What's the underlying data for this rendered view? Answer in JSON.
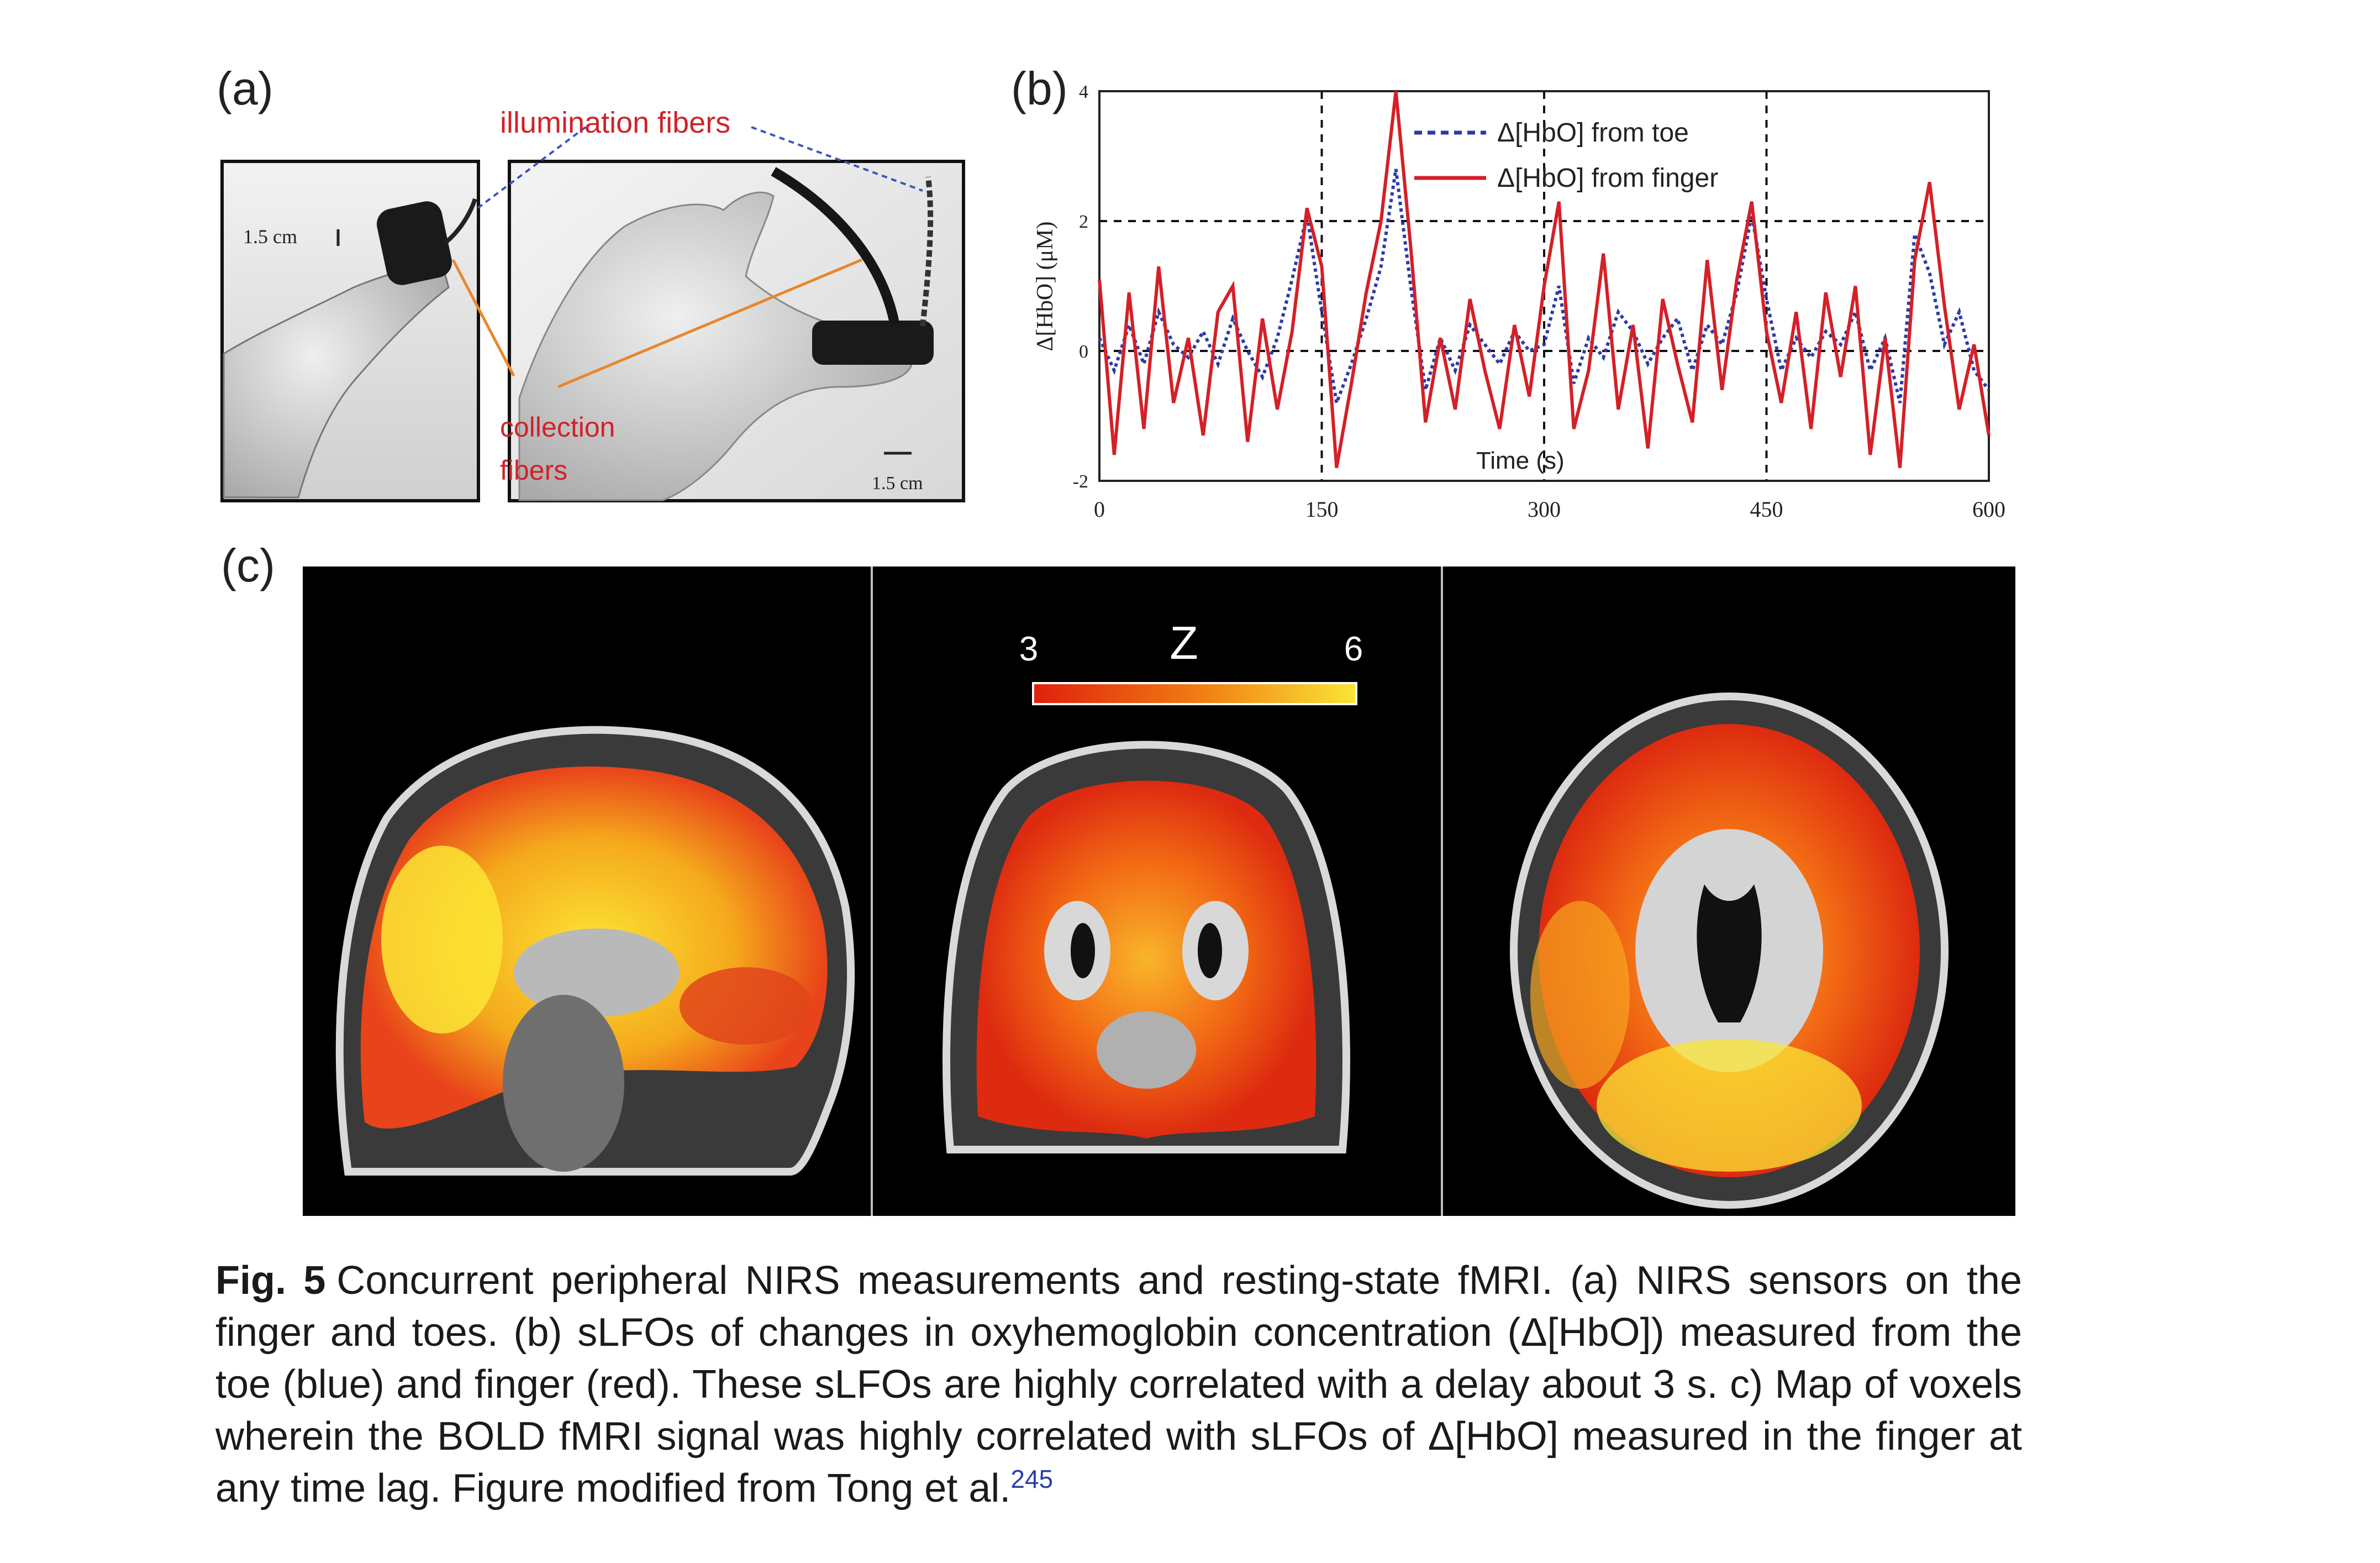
{
  "panel_a": {
    "label": "(a)",
    "illumination_label": "illumination fibers",
    "collection_label_1": "collection",
    "collection_label_2": "fibers",
    "scale_left": "1.5 cm",
    "scale_right": "1.5 cm"
  },
  "panel_b": {
    "label": "(b)",
    "chart_data": {
      "type": "line",
      "xlabel": "Time (s)",
      "ylabel": "Δ[HbO] (μM)",
      "xlim": [
        0,
        600
      ],
      "ylim": [
        -2,
        4
      ],
      "xticks": [
        0,
        150,
        300,
        450,
        600
      ],
      "yticks": [
        -2,
        0,
        2,
        4
      ],
      "x_tick_labels": [
        "0",
        "150",
        "300",
        "450",
        "600"
      ],
      "y_tick_labels": [
        "-2",
        "0",
        "2",
        "4"
      ],
      "grid_dashed_x": [
        150,
        300,
        450
      ],
      "grid_dashed_y": [
        0,
        2
      ],
      "legend_position": "top-right",
      "x": [
        0,
        10,
        20,
        30,
        40,
        50,
        60,
        70,
        80,
        90,
        100,
        110,
        120,
        130,
        140,
        150,
        160,
        170,
        180,
        190,
        200,
        210,
        220,
        230,
        240,
        250,
        260,
        270,
        280,
        290,
        300,
        310,
        320,
        330,
        340,
        350,
        360,
        370,
        380,
        390,
        400,
        410,
        420,
        430,
        440,
        450,
        460,
        470,
        480,
        490,
        500,
        510,
        520,
        530,
        540,
        550,
        560,
        570,
        580,
        590,
        600
      ],
      "series": [
        {
          "name": "Δ[HbO] from toe",
          "color": "#2b3aa8",
          "style": "dotted",
          "values": [
            0.2,
            -0.3,
            0.4,
            -0.2,
            0.6,
            0.1,
            -0.1,
            0.3,
            -0.2,
            0.5,
            0.0,
            -0.4,
            0.2,
            1.1,
            2.1,
            0.6,
            -0.8,
            -0.2,
            0.5,
            1.3,
            2.8,
            1.0,
            -0.6,
            0.2,
            -0.3,
            0.4,
            0.1,
            -0.2,
            0.3,
            0.0,
            0.1,
            1.0,
            -0.5,
            0.2,
            -0.1,
            0.6,
            0.3,
            -0.2,
            0.2,
            0.5,
            -0.3,
            0.4,
            0.1,
            0.9,
            2.1,
            0.8,
            -0.3,
            0.2,
            -0.1,
            0.3,
            0.1,
            0.6,
            -0.3,
            0.2,
            -0.8,
            1.8,
            1.2,
            0.1,
            0.6,
            -0.3,
            -0.6
          ]
        },
        {
          "name": "Δ[HbO] from finger",
          "color": "#d42028",
          "style": "solid",
          "values": [
            1.1,
            -1.6,
            0.9,
            -1.2,
            1.3,
            -0.8,
            0.2,
            -1.3,
            0.6,
            1.0,
            -1.4,
            0.5,
            -0.9,
            0.3,
            2.2,
            1.3,
            -1.8,
            -0.5,
            0.9,
            2.0,
            4.0,
            1.6,
            -1.1,
            0.2,
            -0.9,
            0.8,
            -0.3,
            -1.2,
            0.4,
            -0.7,
            1.0,
            2.3,
            -1.2,
            -0.3,
            1.5,
            -0.9,
            0.4,
            -1.5,
            0.8,
            -0.2,
            -1.1,
            1.4,
            -0.6,
            1.1,
            2.3,
            0.3,
            -0.8,
            0.6,
            -1.2,
            0.9,
            -0.4,
            1.0,
            -1.6,
            0.2,
            -1.8,
            1.4,
            2.6,
            0.7,
            -0.9,
            0.1,
            -1.3
          ]
        }
      ]
    }
  },
  "panel_c": {
    "label": "(c)",
    "colorbar_min": "3",
    "colorbar_max": "6",
    "colorbar_title": "Z",
    "colorbar_colors": [
      "#e0200c",
      "#f07a12",
      "#fbe534"
    ]
  },
  "caption": {
    "fig_label": "Fig. 5",
    "text": "Concurrent peripheral NIRS measurements and resting-state fMRI. (a) NIRS sensors on the finger and toes. (b) sLFOs of changes in oxyhemoglobin concentration (Δ[HbO]) measured from the toe (blue) and finger (red). These sLFOs are highly correlated with a delay about 3 s. c) Map of voxels wherein the BOLD fMRI signal was highly correlated with sLFOs of Δ[HbO] measured in the finger at any time lag. Figure modified from Tong et al.",
    "ref": "245"
  }
}
